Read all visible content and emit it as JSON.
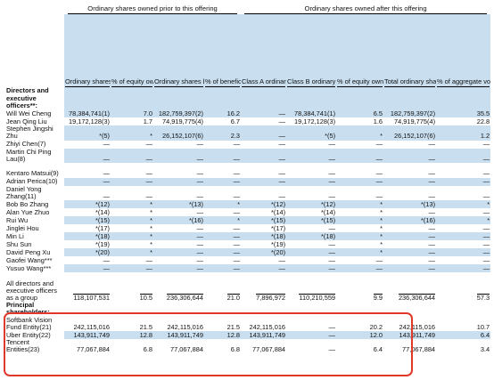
{
  "header_groups": {
    "prior": "Ordinary shares owned prior to this offering",
    "after": "Ordinary shares owned after this offering"
  },
  "columns": [
    "Ordinary shares with an economic interest",
    "% of equity ownership†",
    "Ordinary shares beneficially owned in terms of voting power",
    "% of beneficial ownership in terms of voting power††",
    "Class A ordinary shares with an economic interest",
    "Class B ordinary shares with an economic interest",
    "% of equity ownership†††",
    "Total ordinary shares beneficially owned in terms of voting power",
    "% of aggregate voting power††††"
  ],
  "sections": {
    "directors": "Directors and executive officers**:",
    "principal": "Principal shareholders:"
  },
  "rows_directors": [
    {
      "name": "Will Wei Cheng",
      "cells": [
        "78,384,741(1)",
        "7.0",
        "182,759,397(2)",
        "16.2",
        "—",
        "78,384,741(1)",
        "6.5",
        "182,759,397(2)",
        "35.5"
      ]
    },
    {
      "name": "Jean Qing Liu",
      "cells": [
        "19,172,128(3)",
        "1.7",
        "74,919,775(4)",
        "6.7",
        "—",
        "19,172,128(3)",
        "1.6",
        "74,919,775(4)",
        "22.8"
      ]
    },
    {
      "name": "Stephen Jingshi Zhu",
      "cells": [
        "*(5)",
        "*",
        "26,152,107(6)",
        "2.3",
        "—",
        "*(5)",
        "*",
        "26,152,107(6)",
        "1.2"
      ]
    },
    {
      "name": "Zhiyi Chen(7)",
      "cells": [
        "—",
        "—",
        "—",
        "—",
        "—",
        "—",
        "—",
        "—",
        "—"
      ]
    },
    {
      "name": "Martin Chi Ping Lau(8)",
      "cells": [
        "—",
        "—",
        "—",
        "—",
        "—",
        "—",
        "—",
        "—",
        "—"
      ]
    },
    {
      "name": "Kentaro Matsui(9)",
      "cells": [
        "—",
        "—",
        "—",
        "—",
        "—",
        "—",
        "—",
        "—",
        "—"
      ]
    },
    {
      "name": "Adrian Perica(10)",
      "cells": [
        "—",
        "—",
        "—",
        "—",
        "—",
        "—",
        "—",
        "—",
        "—"
      ]
    },
    {
      "name": "Daniel Yong Zhang(11)",
      "cells": [
        "—",
        "—",
        "—",
        "—",
        "—",
        "—",
        "—",
        "—",
        "—"
      ]
    },
    {
      "name": "Bob Bo Zhang",
      "cells": [
        "*(12)",
        "*",
        "*(13)",
        "*",
        "*(12)",
        "*(12)",
        "*",
        "*(13)",
        "*"
      ]
    },
    {
      "name": "Alan Yue Zhuo",
      "cells": [
        "*(14)",
        "*",
        "—",
        "—",
        "*(14)",
        "*(14)",
        "*",
        "—",
        "—"
      ]
    },
    {
      "name": "Rui Wu",
      "cells": [
        "*(15)",
        "*",
        "*(16)",
        "*",
        "*(15)",
        "*(15)",
        "*",
        "*(16)",
        "*"
      ]
    },
    {
      "name": "Jinglei Hou",
      "cells": [
        "*(17)",
        "*",
        "—",
        "—",
        "*(17)",
        "—",
        "*",
        "—",
        "—"
      ]
    },
    {
      "name": "Min Li",
      "cells": [
        "*(18)",
        "*",
        "—",
        "—",
        "*(18)",
        "*(18)",
        "*",
        "—",
        "—"
      ]
    },
    {
      "name": "Shu Sun",
      "cells": [
        "*(19)",
        "*",
        "—",
        "—",
        "*(19)",
        "—",
        "*",
        "—",
        "—"
      ]
    },
    {
      "name": "David Peng Xu",
      "cells": [
        "*(20)",
        "*",
        "—",
        "—",
        "*(20)",
        "—",
        "*",
        "—",
        "—"
      ]
    },
    {
      "name": "Gaofei Wang***",
      "cells": [
        "—",
        "—",
        "—",
        "—",
        "—",
        "—",
        "—",
        "—",
        "—"
      ]
    },
    {
      "name": "Yusuo Wang***",
      "cells": [
        "—",
        "—",
        "—",
        "—",
        "—",
        "—",
        "—",
        "—",
        "—"
      ]
    },
    {
      "name": "All directors and executive officers as a group",
      "cells": [
        "118,107,531",
        "10.5",
        "236,306,644",
        "21.0",
        "7,896,972",
        "110,210,559",
        "9.9",
        "236,306,644",
        "57.3"
      ]
    }
  ],
  "rows_principal": [
    {
      "name": "Softbank Vision Fund Entity(21)",
      "cells": [
        "242,115,016",
        "21.5",
        "242,115,016",
        "21.5",
        "242,115,016",
        "—",
        "20.2",
        "242,115,016",
        "10.7"
      ]
    },
    {
      "name": "Uber Entity(22)",
      "cells": [
        "143,911,749",
        "12.8",
        "143,911,749",
        "12.8",
        "143,911,749",
        "—",
        "12.0",
        "143,911,749",
        "6.4"
      ]
    },
    {
      "name": "Tencent Entities(23)",
      "cells": [
        "77,067,884",
        "6.8",
        "77,067,884",
        "6.8",
        "77,067,884",
        "—",
        "6.4",
        "77,067,884",
        "3.4"
      ]
    }
  ]
}
